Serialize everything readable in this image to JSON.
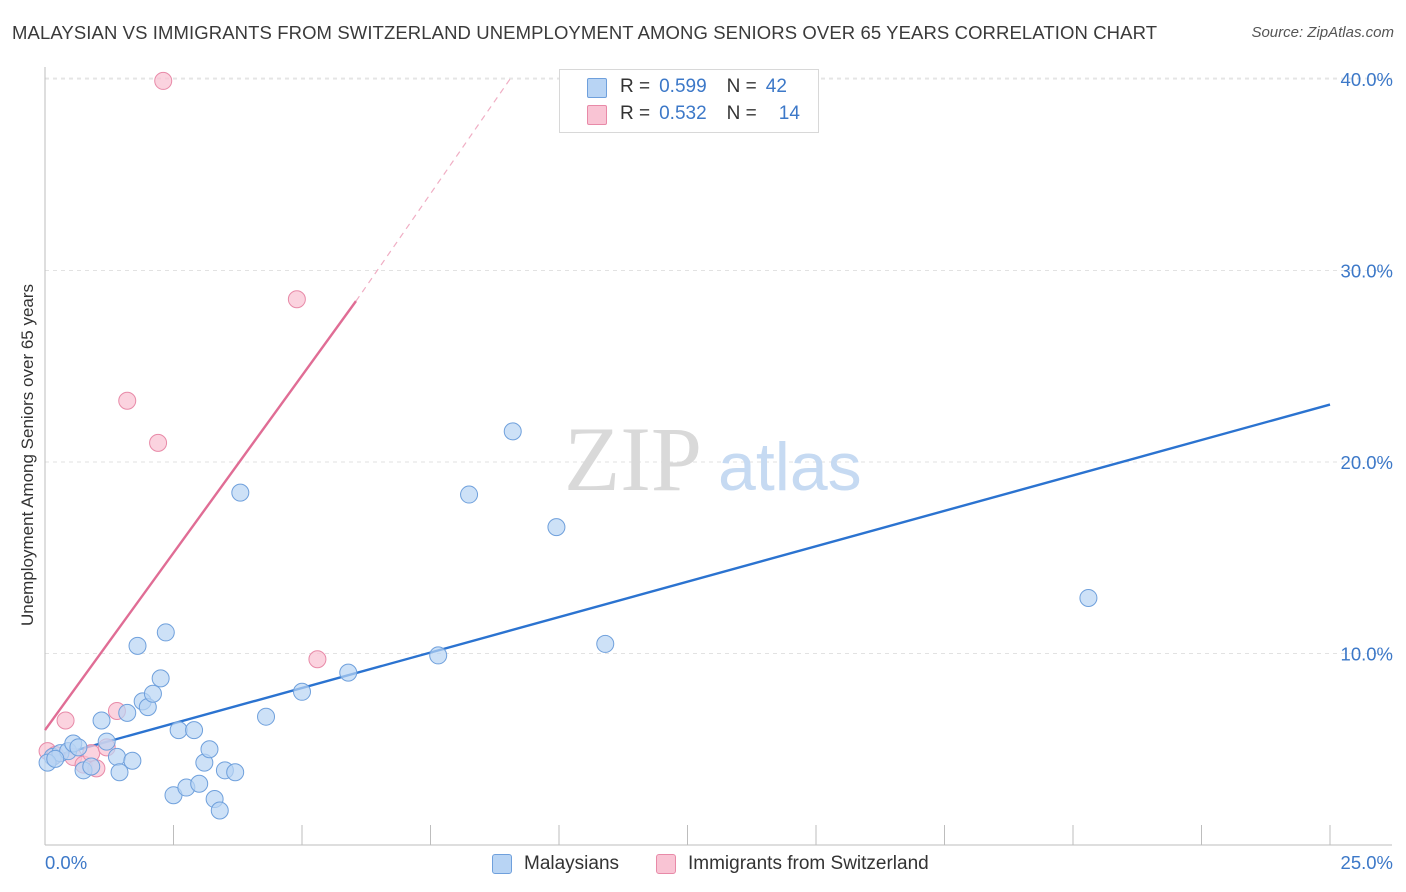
{
  "title": "MALAYSIAN VS IMMIGRANTS FROM SWITZERLAND UNEMPLOYMENT AMONG SENIORS OVER 65 YEARS CORRELATION CHART",
  "source": "Source: ZipAtlas.com",
  "watermark": {
    "zip": "ZIP",
    "atlas": "atlas"
  },
  "legend": {
    "r_label": "R =",
    "n_label": "N =",
    "rows": [
      {
        "series": "Malaysians",
        "r": "0.599",
        "n": "42"
      },
      {
        "series": "Immigrants from Switzerland",
        "r": "0.532",
        "n": "14"
      }
    ]
  },
  "chart_data": {
    "type": "scatter",
    "title": "MALAYSIAN VS IMMIGRANTS FROM SWITZERLAND UNEMPLOYMENT AMONG SENIORS OVER 65 YEARS CORRELATION CHART",
    "xlabel": "",
    "ylabel": "Unemployment Among Seniors over 65 years",
    "xlim": [
      0,
      25
    ],
    "ylim": [
      0,
      41
    ],
    "x_tick_labels": [
      "0.0%",
      "25.0%"
    ],
    "y_ticks": [
      10,
      20,
      30,
      40
    ],
    "y_tick_labels": [
      "10.0%",
      "20.0%",
      "30.0%",
      "40.0%"
    ],
    "legend_position": "top-center",
    "colors": {
      "malaysians_fill": "#b8d4f4",
      "malaysians_edge": "#6fa0dc",
      "malaysians_line": "#2b73d0",
      "swiss_fill": "#f9c4d4",
      "swiss_edge": "#e88aa8",
      "swiss_line": "#e06d95",
      "tick_label": "#3c78c8"
    },
    "series": [
      {
        "name": "Malaysians",
        "points": [
          [
            0.15,
            4.6
          ],
          [
            0.3,
            4.8
          ],
          [
            0.45,
            4.9
          ],
          [
            0.55,
            5.3
          ],
          [
            0.65,
            5.1
          ],
          [
            0.75,
            3.9
          ],
          [
            0.9,
            4.1
          ],
          [
            1.1,
            6.5
          ],
          [
            1.2,
            5.4
          ],
          [
            1.4,
            4.6
          ],
          [
            1.45,
            3.8
          ],
          [
            1.6,
            6.9
          ],
          [
            1.7,
            4.4
          ],
          [
            1.8,
            10.4
          ],
          [
            1.9,
            7.5
          ],
          [
            2.0,
            7.2
          ],
          [
            2.1,
            7.9
          ],
          [
            2.25,
            8.7
          ],
          [
            2.35,
            11.1
          ],
          [
            2.5,
            2.6
          ],
          [
            2.6,
            6.0
          ],
          [
            2.75,
            3.0
          ],
          [
            2.9,
            6.0
          ],
          [
            3.0,
            3.2
          ],
          [
            3.1,
            4.3
          ],
          [
            3.2,
            5.0
          ],
          [
            3.3,
            2.4
          ],
          [
            3.4,
            1.8
          ],
          [
            3.5,
            3.9
          ],
          [
            3.7,
            3.8
          ],
          [
            3.8,
            18.4
          ],
          [
            4.3,
            6.7
          ],
          [
            5.0,
            8.0
          ],
          [
            5.9,
            9.0
          ],
          [
            7.65,
            9.9
          ],
          [
            8.25,
            18.3
          ],
          [
            9.1,
            21.6
          ],
          [
            9.95,
            16.6
          ],
          [
            10.9,
            10.5
          ],
          [
            20.3,
            12.9
          ],
          [
            0.05,
            4.3
          ],
          [
            0.2,
            4.5
          ]
        ],
        "trendline": {
          "x": [
            0,
            25
          ],
          "y": [
            4.5,
            23.0
          ]
        }
      },
      {
        "name": "Immigrants from Switzerland",
        "points": [
          [
            0.05,
            4.9
          ],
          [
            0.2,
            4.7
          ],
          [
            0.4,
            6.5
          ],
          [
            0.55,
            4.6
          ],
          [
            0.75,
            4.2
          ],
          [
            0.9,
            4.8
          ],
          [
            1.0,
            4.0
          ],
          [
            1.2,
            5.1
          ],
          [
            1.4,
            7.0
          ],
          [
            1.6,
            23.2
          ],
          [
            2.2,
            21.0
          ],
          [
            2.3,
            39.9
          ],
          [
            4.9,
            28.5
          ],
          [
            5.3,
            9.7
          ]
        ],
        "trendline": {
          "x": [
            0,
            6.05
          ],
          "y": [
            6.0,
            28.4
          ]
        },
        "trendline_extension": {
          "x": [
            6.05,
            9.1
          ],
          "y": [
            28.4,
            40.2
          ]
        }
      }
    ]
  }
}
